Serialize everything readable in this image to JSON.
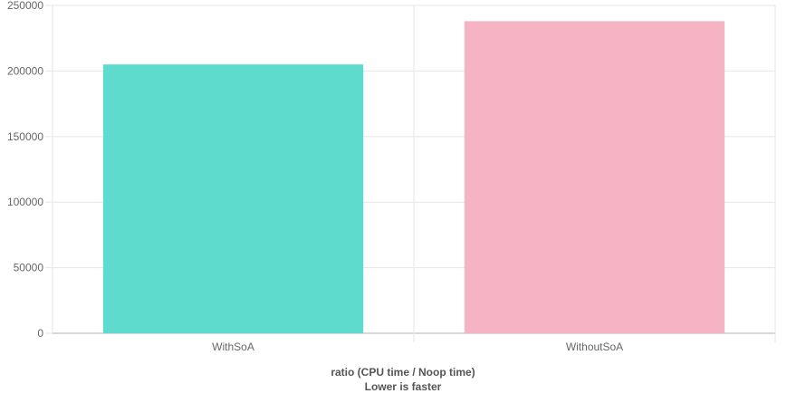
{
  "chart_data": {
    "type": "bar",
    "categories": [
      "WithSoA",
      "WithoutSoA"
    ],
    "values": [
      205000,
      238000
    ],
    "colors": [
      "#5fdbce",
      "#f5b3c3"
    ],
    "xlabel": "ratio (CPU time / Noop time)",
    "subtitle": "Lower is faster",
    "ylim": [
      0,
      250000
    ],
    "yticks": [
      "0",
      "50000",
      "100000",
      "150000",
      "200000",
      "250000"
    ],
    "grid": true,
    "legend": "none"
  }
}
